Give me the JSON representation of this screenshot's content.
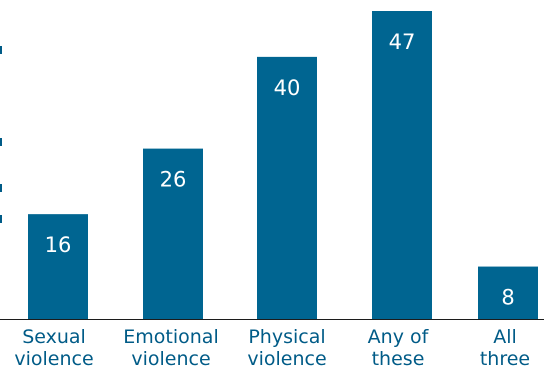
{
  "colors": {
    "bar": "#006591",
    "value_label": "#ffffff",
    "category_label": "#005b87",
    "baseline": "#1c1c1c"
  },
  "chart_data": {
    "type": "bar",
    "categories": [
      [
        "Sexual",
        "violence"
      ],
      [
        "Emotional",
        "violence"
      ],
      [
        "Physical",
        "violence"
      ],
      [
        "Any of",
        "these"
      ],
      [
        "All",
        "three"
      ]
    ],
    "values": [
      16,
      26,
      40,
      47,
      8
    ],
    "data_labels": [
      "16",
      "26",
      "40",
      "47",
      "8"
    ],
    "ylim": [
      0,
      47
    ],
    "grid": false,
    "legend": "none"
  }
}
